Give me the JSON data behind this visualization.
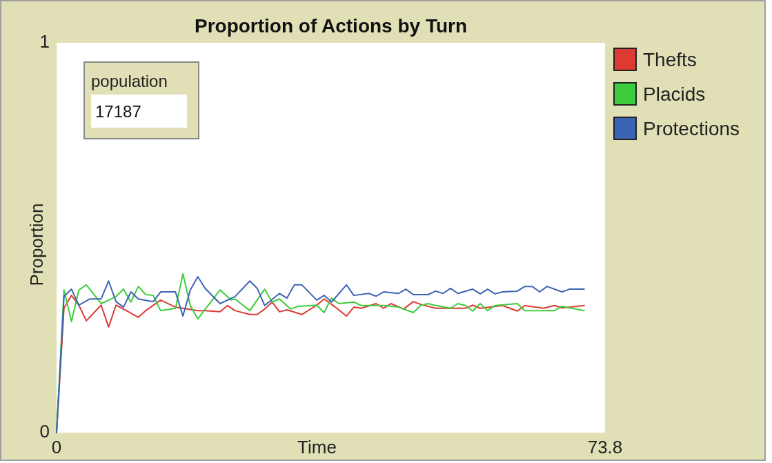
{
  "chart_data": {
    "type": "line",
    "title": "Proportion of Actions  by Turn",
    "xlabel": "Time",
    "ylabel": "Proportion",
    "xlim": [
      0,
      73.8
    ],
    "ylim": [
      0,
      1
    ],
    "xticks": [
      0,
      73.8
    ],
    "yticks": [
      0,
      1
    ],
    "grid": false,
    "legend": "top right",
    "marker": "none",
    "line_style": "solid",
    "annotations": [
      "population",
      "17187"
    ],
    "series": [
      {
        "name": "Thefts",
        "color": "#dc3a32",
        "x": [
          0,
          1,
          2,
          3,
          4,
          6,
          7,
          8,
          9,
          11,
          12,
          14,
          16,
          17,
          19,
          20,
          22,
          23,
          24,
          26,
          27,
          28,
          29,
          30,
          31,
          33,
          35,
          36,
          37.5,
          39,
          40,
          41,
          43,
          44,
          45,
          46.7,
          48,
          49,
          51,
          53,
          55,
          56,
          57,
          60,
          62,
          63,
          65.5,
          67,
          68,
          71
        ],
        "values": [
          0,
          0.32,
          0.352,
          0.327,
          0.287,
          0.327,
          0.271,
          0.327,
          0.317,
          0.296,
          0.313,
          0.34,
          0.322,
          0.319,
          0.313,
          0.313,
          0.31,
          0.326,
          0.313,
          0.303,
          0.303,
          0.317,
          0.335,
          0.31,
          0.315,
          0.303,
          0.327,
          0.343,
          0.322,
          0.299,
          0.322,
          0.319,
          0.331,
          0.319,
          0.331,
          0.317,
          0.336,
          0.329,
          0.319,
          0.319,
          0.319,
          0.327,
          0.319,
          0.326,
          0.312,
          0.326,
          0.319,
          0.326,
          0.32,
          0.326
        ]
      },
      {
        "name": "Placids",
        "color": "#3ccc3c",
        "x": [
          0,
          1,
          2,
          3,
          4,
          6,
          8,
          9,
          10,
          11,
          12,
          13,
          14,
          16,
          17,
          18,
          19,
          22,
          23.5,
          24,
          26,
          28,
          29,
          30,
          31.5,
          32.5,
          35,
          36,
          37,
          38,
          40,
          41,
          44,
          46,
          48,
          49,
          50,
          51,
          53,
          54,
          55,
          56,
          57,
          58,
          59,
          62,
          63,
          67,
          68,
          71
        ],
        "values": [
          0,
          0.366,
          0.285,
          0.366,
          0.379,
          0.331,
          0.349,
          0.368,
          0.335,
          0.375,
          0.354,
          0.352,
          0.313,
          0.319,
          0.407,
          0.326,
          0.292,
          0.366,
          0.34,
          0.343,
          0.313,
          0.368,
          0.335,
          0.343,
          0.317,
          0.324,
          0.327,
          0.308,
          0.345,
          0.331,
          0.335,
          0.326,
          0.326,
          0.322,
          0.308,
          0.326,
          0.331,
          0.326,
          0.319,
          0.331,
          0.326,
          0.312,
          0.331,
          0.313,
          0.326,
          0.331,
          0.313,
          0.313,
          0.324,
          0.313
        ]
      },
      {
        "name": "Protections",
        "color": "#3b64b4",
        "x": [
          0,
          1,
          2,
          3,
          4.5,
          6,
          7,
          8,
          9,
          10,
          11,
          13,
          14,
          16,
          17,
          18,
          19,
          20,
          22,
          24,
          26,
          27,
          28,
          30,
          31,
          32,
          33,
          35,
          36,
          37,
          39,
          40,
          42,
          43,
          44,
          46,
          47,
          48,
          50,
          51,
          52,
          53,
          54,
          56,
          57,
          58,
          59,
          60,
          62,
          63,
          64,
          65,
          66,
          68,
          69,
          71
        ],
        "values": [
          0,
          0.349,
          0.368,
          0.327,
          0.343,
          0.343,
          0.389,
          0.336,
          0.322,
          0.361,
          0.343,
          0.336,
          0.361,
          0.361,
          0.299,
          0.366,
          0.4,
          0.37,
          0.331,
          0.349,
          0.389,
          0.37,
          0.326,
          0.357,
          0.345,
          0.379,
          0.379,
          0.34,
          0.352,
          0.335,
          0.379,
          0.352,
          0.357,
          0.35,
          0.361,
          0.357,
          0.368,
          0.354,
          0.354,
          0.363,
          0.357,
          0.37,
          0.357,
          0.368,
          0.356,
          0.368,
          0.356,
          0.361,
          0.363,
          0.375,
          0.375,
          0.361,
          0.375,
          0.361,
          0.368,
          0.368
        ]
      }
    ]
  }
}
